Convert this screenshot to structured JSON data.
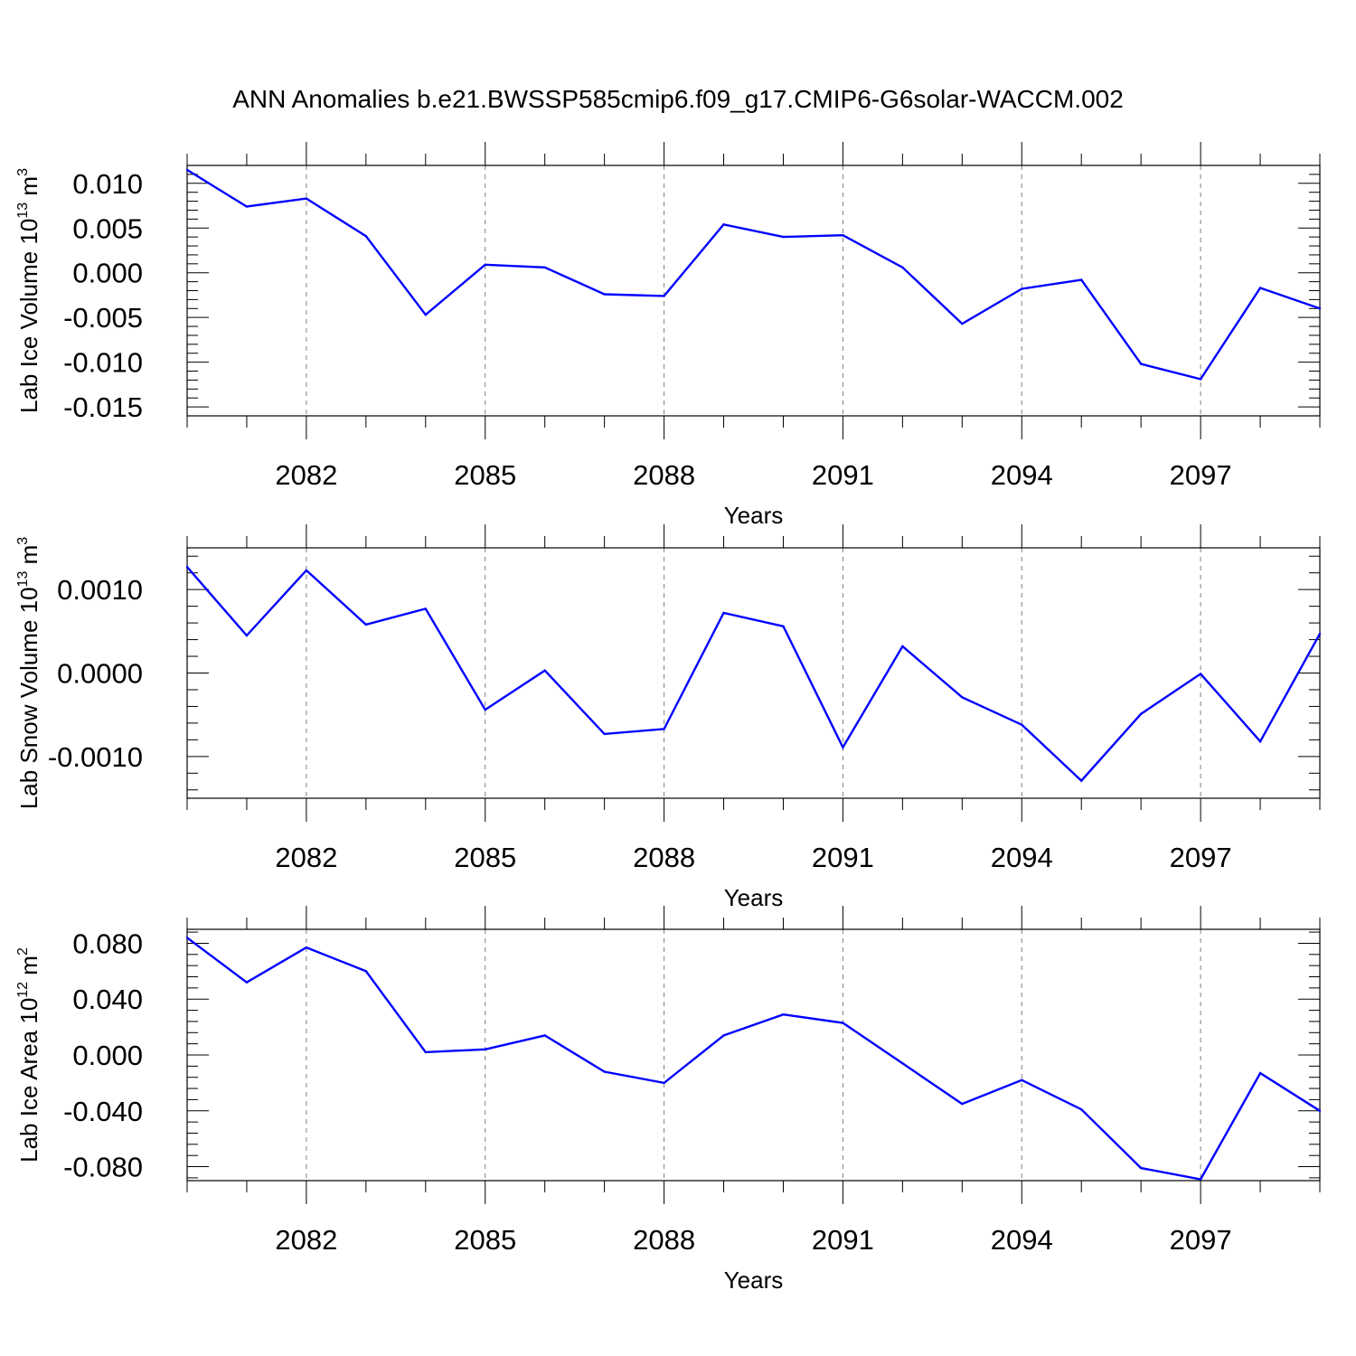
{
  "chart_title": "ANN Anomalies b.e21.BWSSP585cmip6.f09_g17.CMIP6-G6solar-WACCM.002",
  "colors": {
    "line": "#0000ff",
    "axis": "#000000",
    "grid": "#808080"
  },
  "chart_data": [
    {
      "type": "line",
      "xlabel": "Years",
      "ylabel": {
        "text": "Lab Ice Volume 10",
        "exp": "13",
        "unit": " m",
        "unit_exp": "3"
      },
      "xlim": [
        2080,
        2099
      ],
      "ylim": [
        -0.016,
        0.012
      ],
      "xticks": [
        2082,
        2085,
        2088,
        2091,
        2094,
        2097
      ],
      "xtick_labels": [
        "2082",
        "2085",
        "2088",
        "2091",
        "2094",
        "2097"
      ],
      "yticks": [
        -0.015,
        -0.01,
        -0.005,
        0.0,
        0.005,
        0.01
      ],
      "ytick_labels": [
        "-0.015",
        "-0.010",
        "-0.005",
        "0.000",
        "0.005",
        "0.010"
      ],
      "x": [
        2080,
        2081,
        2082,
        2083,
        2084,
        2085,
        2086,
        2087,
        2088,
        2089,
        2090,
        2091,
        2092,
        2093,
        2094,
        2095,
        2096,
        2097,
        2098,
        2099
      ],
      "values": [
        0.0115,
        0.0074,
        0.0083,
        0.0041,
        -0.0047,
        0.0009,
        0.0006,
        -0.0024,
        -0.0026,
        0.0054,
        0.004,
        0.0042,
        0.0006,
        -0.0057,
        -0.0018,
        -0.0008,
        -0.0102,
        -0.0119,
        -0.0017,
        -0.004
      ],
      "grid": "vertical dashed at labeled x ticks"
    },
    {
      "type": "line",
      "xlabel": "Years",
      "ylabel": {
        "text": "Lab Snow Volume 10",
        "exp": "13",
        "unit": " m",
        "unit_exp": "3"
      },
      "xlim": [
        2080,
        2099
      ],
      "ylim": [
        -0.0015,
        0.0015
      ],
      "xticks": [
        2082,
        2085,
        2088,
        2091,
        2094,
        2097
      ],
      "xtick_labels": [
        "2082",
        "2085",
        "2088",
        "2091",
        "2094",
        "2097"
      ],
      "yticks": [
        -0.001,
        0.0,
        0.001
      ],
      "ytick_labels": [
        "-0.0010",
        "0.0000",
        "0.0010"
      ],
      "x": [
        2080,
        2081,
        2082,
        2083,
        2084,
        2085,
        2086,
        2087,
        2088,
        2089,
        2090,
        2091,
        2092,
        2093,
        2094,
        2095,
        2096,
        2097,
        2098,
        2099
      ],
      "values": [
        0.00127,
        0.00045,
        0.00123,
        0.00058,
        0.00077,
        -0.00044,
        3e-05,
        -0.00073,
        -0.00067,
        0.00072,
        0.00056,
        -0.00089,
        0.00032,
        -0.00029,
        -0.00062,
        -0.00129,
        -0.00049,
        -1e-05,
        -0.00082,
        0.00047
      ],
      "grid": "vertical dashed at labeled x ticks"
    },
    {
      "type": "line",
      "xlabel": "Years",
      "ylabel": {
        "text": "Lab Ice Area 10",
        "exp": "12",
        "unit": " m",
        "unit_exp": "2"
      },
      "xlim": [
        2080,
        2099
      ],
      "ylim": [
        -0.09,
        0.09
      ],
      "xticks": [
        2082,
        2085,
        2088,
        2091,
        2094,
        2097
      ],
      "xtick_labels": [
        "2082",
        "2085",
        "2088",
        "2091",
        "2094",
        "2097"
      ],
      "yticks": [
        -0.08,
        -0.04,
        0.0,
        0.04,
        0.08
      ],
      "ytick_labels": [
        "-0.080",
        "-0.040",
        "0.000",
        "0.040",
        "0.080"
      ],
      "x": [
        2080,
        2081,
        2082,
        2083,
        2084,
        2085,
        2086,
        2087,
        2088,
        2089,
        2090,
        2091,
        2092,
        2093,
        2094,
        2095,
        2096,
        2097,
        2098,
        2099
      ],
      "values": [
        0.084,
        0.052,
        0.077,
        0.06,
        0.002,
        0.004,
        0.014,
        -0.012,
        -0.02,
        0.014,
        0.029,
        0.023,
        -0.006,
        -0.035,
        -0.018,
        -0.039,
        -0.081,
        -0.089,
        -0.013,
        -0.04
      ],
      "grid": "vertical dashed at labeled x ticks"
    }
  ]
}
